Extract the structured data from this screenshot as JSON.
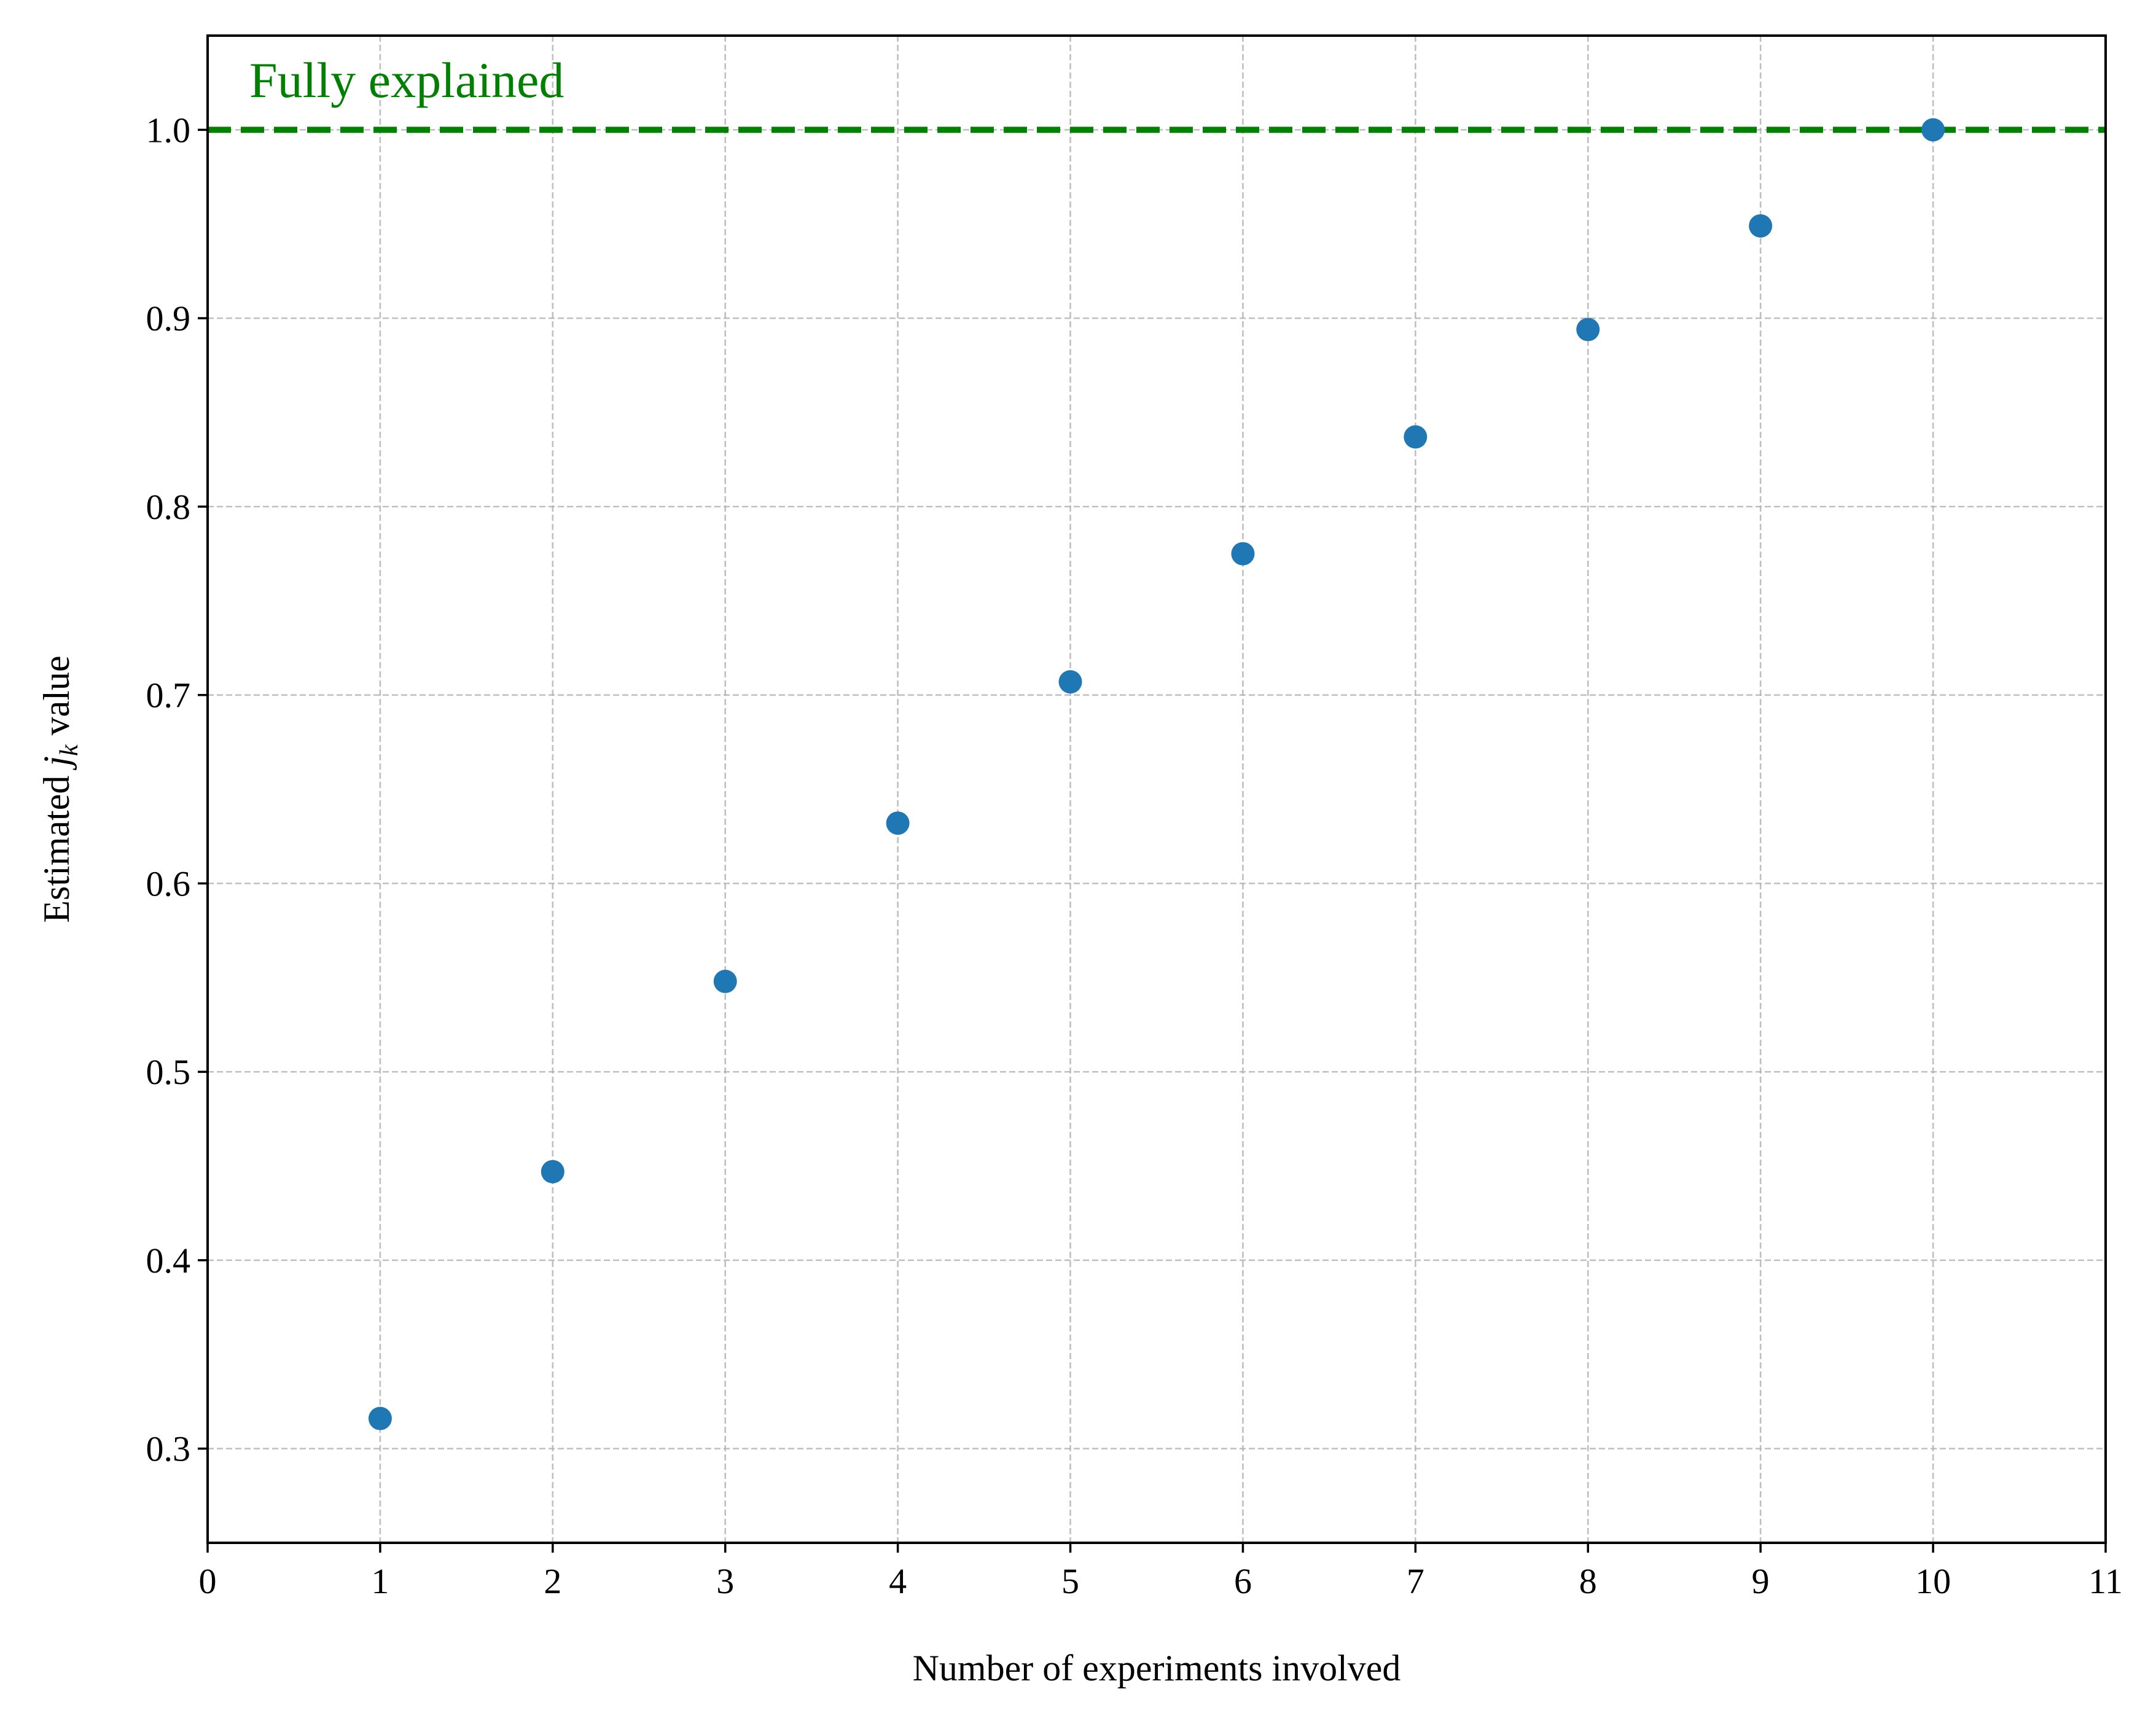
{
  "chart_data": {
    "type": "scatter",
    "xlabel": "Number of experiments involved",
    "ylabel": {
      "prefix": "Estimated ",
      "var_main": "j",
      "var_sub": "k",
      "suffix": " value"
    },
    "xlim": [
      0,
      11
    ],
    "ylim": [
      0.25,
      1.05
    ],
    "xticks": [
      0,
      1,
      2,
      3,
      4,
      5,
      6,
      7,
      8,
      9,
      10,
      11
    ],
    "xtick_labels": [
      "0",
      "1",
      "2",
      "3",
      "4",
      "5",
      "6",
      "7",
      "8",
      "9",
      "10",
      "11"
    ],
    "yticks": [
      0.3,
      0.4,
      0.5,
      0.6,
      0.7,
      0.8,
      0.9,
      1.0
    ],
    "ytick_labels": [
      "0.3",
      "0.4",
      "0.5",
      "0.6",
      "0.7",
      "0.8",
      "0.9",
      "1.0"
    ],
    "grid": true,
    "series": [
      {
        "x": [
          1,
          2,
          3,
          4,
          5,
          6,
          7,
          8,
          9,
          10
        ],
        "y": [
          0.316,
          0.447,
          0.548,
          0.632,
          0.707,
          0.775,
          0.837,
          0.894,
          0.949,
          1.0
        ],
        "color": "#1f77b4"
      }
    ],
    "reference_line": {
      "y": 1.0,
      "style": "dashed",
      "color": "#008000",
      "label": "Fully explained"
    },
    "annotation_color": "#008000"
  }
}
